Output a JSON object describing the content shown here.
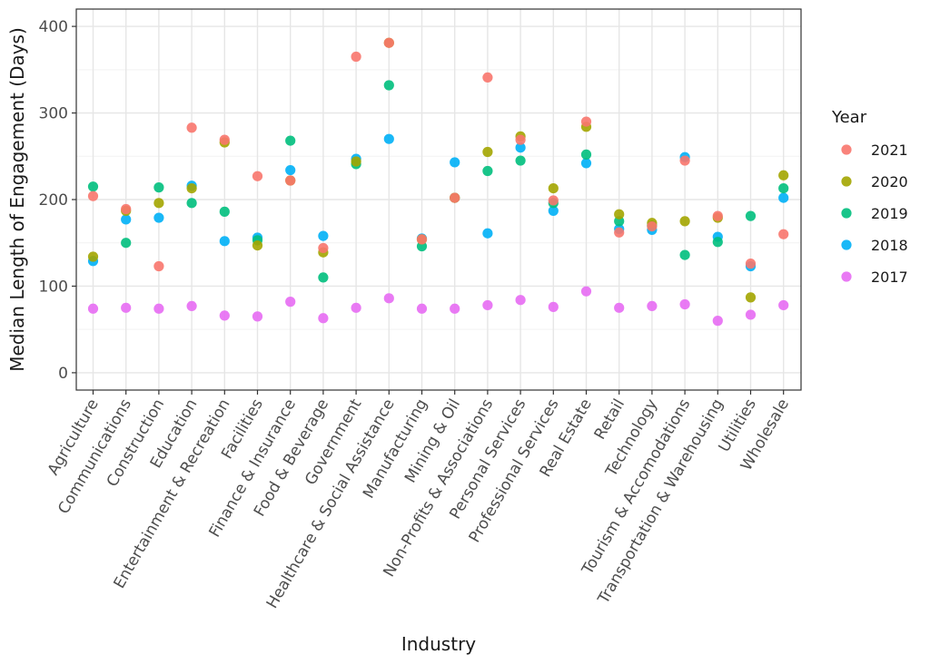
{
  "chart_data": {
    "type": "scatter",
    "title": "",
    "xlabel": "Industry",
    "ylabel": "Median Length of Engagement (Days)",
    "ylim": [
      -20,
      420
    ],
    "yticks": [
      0,
      100,
      200,
      300,
      400
    ],
    "grid": true,
    "legend_title": "Year",
    "legend_position": "right",
    "categories": [
      "Agriculture",
      "Communications",
      "Construction",
      "Education",
      "Entertainment & Recreation",
      "Facilities",
      "Finance & Insurance",
      "Food & Beverage",
      "Government",
      "Healthcare & Social Assistance",
      "Manufacturing",
      "Mining & Oil",
      "Non-Profits & Associations",
      "Personal Services",
      "Professional Services",
      "Real Estate",
      "Retail",
      "Technology",
      "Tourism & Accomodations",
      "Transportation & Warehousing",
      "Utilities",
      "Wholesale"
    ],
    "series": [
      {
        "name": "2017",
        "color": "#E76BF3",
        "values": [
          74,
          75,
          74,
          77,
          66,
          65,
          82,
          63,
          75,
          86,
          74,
          74,
          78,
          84,
          76,
          94,
          75,
          77,
          79,
          60,
          67,
          78
        ]
      },
      {
        "name": "2018",
        "color": "#00B0F6",
        "values": [
          129,
          177,
          179,
          216,
          152,
          156,
          234,
          158,
          247,
          270,
          155,
          243,
          161,
          260,
          187,
          242,
          166,
          165,
          249,
          157,
          123,
          202
        ]
      },
      {
        "name": "2019",
        "color": "#00BF7D",
        "values": [
          215,
          150,
          214,
          196,
          186,
          153,
          268,
          110,
          241,
          332,
          146,
          202,
          233,
          245,
          196,
          252,
          175,
          170,
          136,
          151,
          181,
          213
        ]
      },
      {
        "name": "2020",
        "color": "#A3A500",
        "values": [
          134,
          187,
          196,
          213,
          266,
          147,
          222,
          139,
          244,
          381,
          154,
          202,
          255,
          273,
          213,
          284,
          183,
          173,
          175,
          179,
          87,
          228
        ]
      },
      {
        "name": "2021",
        "color": "#F8766D",
        "values": [
          204,
          189,
          123,
          283,
          269,
          227,
          222,
          144,
          365,
          381,
          154,
          202,
          341,
          269,
          199,
          290,
          162,
          169,
          245,
          181,
          126,
          160
        ]
      }
    ],
    "legend_order": [
      "2021",
      "2020",
      "2019",
      "2018",
      "2017"
    ]
  }
}
